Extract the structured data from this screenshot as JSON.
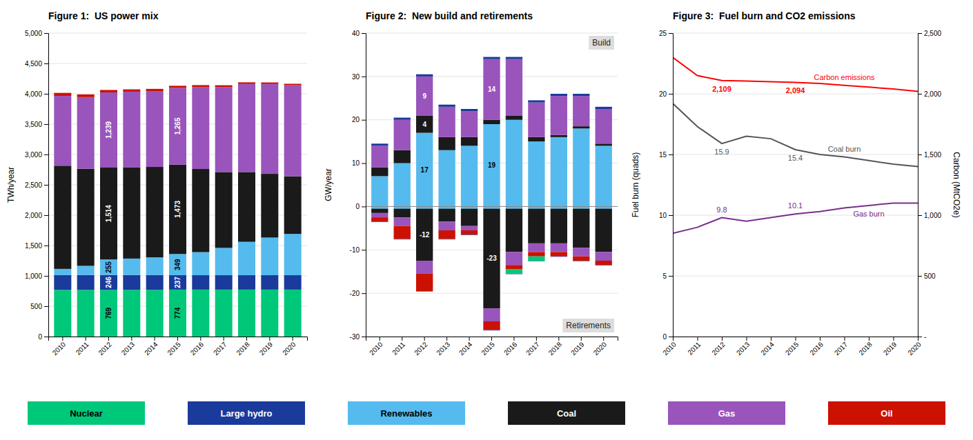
{
  "chart_data": [
    {
      "type": "bar",
      "stacked": true,
      "title": "Figure 1:  US power mix",
      "ylabel": "TWh/year",
      "categories": [
        "2010",
        "2011",
        "2012",
        "2013",
        "2014",
        "2015",
        "2016",
        "2017",
        "2018",
        "2019",
        "2020"
      ],
      "series": [
        {
          "name": "Nuclear",
          "color": "#00C87A",
          "values": [
            769,
            769,
            769,
            769,
            769,
            774,
            774,
            774,
            774,
            774,
            774
          ],
          "value_labels": [
            null,
            null,
            "769",
            null,
            null,
            "774",
            null,
            null,
            null,
            null,
            null
          ]
        },
        {
          "name": "Large hydro",
          "color": "#1A3A9C",
          "values": [
            246,
            246,
            246,
            246,
            246,
            237,
            237,
            237,
            237,
            237,
            237
          ],
          "value_labels": [
            null,
            null,
            "246",
            null,
            null,
            "237",
            null,
            null,
            null,
            null,
            null
          ]
        },
        {
          "name": "Renewables",
          "color": "#55BBEE",
          "values": [
            100,
            150,
            255,
            270,
            290,
            349,
            380,
            450,
            550,
            620,
            680
          ],
          "value_labels": [
            null,
            null,
            "255",
            null,
            null,
            "349",
            null,
            null,
            null,
            null,
            null
          ]
        },
        {
          "name": "Coal",
          "color": "#1A1A1A",
          "values": [
            1700,
            1600,
            1514,
            1500,
            1490,
            1473,
            1370,
            1250,
            1150,
            1050,
            950
          ],
          "value_labels": [
            null,
            null,
            "1,514",
            null,
            null,
            "1,473",
            null,
            null,
            null,
            null,
            null
          ]
        },
        {
          "name": "Gas",
          "color": "#9955BB",
          "values": [
            1150,
            1180,
            1239,
            1250,
            1250,
            1265,
            1350,
            1400,
            1450,
            1480,
            1500
          ],
          "value_labels": [
            null,
            null,
            "1,239",
            null,
            null,
            "1,265",
            null,
            null,
            null,
            null,
            null
          ]
        },
        {
          "name": "Oil",
          "color": "#CC1100",
          "values": [
            50,
            45,
            40,
            38,
            36,
            34,
            32,
            30,
            28,
            26,
            24
          ]
        }
      ],
      "ylim": [
        0,
        5000
      ],
      "yticks": [
        0,
        500,
        {
          "value": 1000,
          "label": "1,000"
        },
        {
          "value": 1500,
          "label": "1,500"
        },
        {
          "value": 2000,
          "label": "2,000"
        },
        {
          "value": 2500,
          "label": "2,500"
        },
        {
          "value": 3000,
          "label": "3,000"
        },
        {
          "value": 3500,
          "label": "3,500"
        },
        {
          "value": 4000,
          "label": "4,000"
        },
        {
          "value": 4500,
          "label": "4,500"
        },
        {
          "value": 5000,
          "label": "5,000"
        }
      ],
      "grid": true,
      "legend": "bottom"
    },
    {
      "type": "bar",
      "stacked": true,
      "title": "Figure 2:  New build and retirements",
      "ylabel": "GW/year",
      "categories": [
        "2010",
        "2011",
        "2012",
        "2013",
        "2014",
        "2015",
        "2016",
        "2017",
        "2018",
        "2019",
        "2020"
      ],
      "series": [
        {
          "name": "Renewables",
          "color": "#55BBEE",
          "values": [
            7,
            10,
            17,
            13,
            14,
            19,
            20,
            15,
            16,
            18,
            14
          ],
          "value_labels": [
            null,
            null,
            "17",
            null,
            null,
            "19",
            null,
            null,
            null,
            null,
            null
          ]
        },
        {
          "name": "Coal",
          "color": "#1A1A1A",
          "values": [
            2,
            3,
            4,
            3,
            2,
            1,
            1,
            1,
            0.5,
            0.5,
            0.5
          ],
          "value_labels": [
            null,
            null,
            "4",
            null,
            null,
            null,
            null,
            null,
            null,
            null,
            null
          ]
        },
        {
          "name": "Gas",
          "color": "#9955BB",
          "values": [
            5,
            7,
            9,
            7,
            6,
            14,
            13,
            8,
            9,
            7,
            8
          ],
          "value_labels": [
            null,
            null,
            "9",
            null,
            null,
            "14",
            null,
            null,
            null,
            null,
            null
          ]
        },
        {
          "name": "Large hydro",
          "color": "#1A3A9C",
          "values": [
            0.5,
            0.5,
            0.5,
            0.5,
            0.5,
            0.5,
            0.5,
            0.5,
            0.5,
            0.5,
            0.5
          ]
        },
        {
          "name": "Nuclear",
          "color": "#00C87A",
          "values": [
            0,
            0,
            0,
            0,
            0,
            0,
            0,
            0,
            0,
            0,
            0
          ]
        },
        {
          "name": "Renewables",
          "color": "#55BBEE",
          "values": [
            -0.5,
            -0.5,
            -0.5,
            -0.5,
            -0.5,
            -0.5,
            -0.5,
            -0.5,
            -0.5,
            -0.5,
            -0.5
          ]
        },
        {
          "name": "Coal",
          "color": "#1A1A1A",
          "values": [
            -1,
            -2,
            -12,
            -3,
            -4,
            -23,
            -10,
            -8,
            -8,
            -9,
            -10
          ],
          "value_labels": [
            null,
            null,
            "-12",
            null,
            null,
            "-23",
            null,
            null,
            null,
            null,
            null
          ]
        },
        {
          "name": "Gas",
          "color": "#9955BB",
          "values": [
            -1,
            -2,
            -3,
            -2,
            -1,
            -3,
            -3,
            -2,
            -2,
            -2,
            -2
          ]
        },
        {
          "name": "Oil",
          "color": "#CC1100",
          "values": [
            -1,
            -3,
            -4,
            -2,
            -1,
            -2,
            -1,
            -1,
            -1,
            -1,
            -1
          ]
        },
        {
          "name": "Nuclear",
          "color": "#00C87A",
          "values": [
            0,
            0,
            0,
            0,
            0,
            0,
            -1,
            -1,
            0,
            0,
            0
          ]
        },
        {
          "name": "Large hydro",
          "color": "#1A3A9C",
          "values": [
            -0.1,
            -0.1,
            -0.1,
            -0.1,
            -0.1,
            -0.1,
            -0.1,
            -0.1,
            -0.1,
            -0.1,
            -0.1
          ]
        }
      ],
      "ylim": [
        -30,
        40
      ],
      "yticks": [
        -30,
        -20,
        -10,
        0,
        10,
        20,
        30,
        40
      ],
      "grid": true,
      "annotations": [
        "Build",
        "Retirements"
      ]
    },
    {
      "type": "line",
      "title": "Figure 3:  Fuel burn and CO2 emissions",
      "ylabel": "Fuel burn (quads)",
      "y2label": "Carbon (MtCO2e)",
      "x": [
        2010,
        2011,
        2012,
        2013,
        2014,
        2015,
        2016,
        2017,
        2018,
        2019,
        2020
      ],
      "xlim": [
        2010,
        2020
      ],
      "xticks": [
        2010,
        2011,
        2012,
        2013,
        2014,
        2015,
        2016,
        2017,
        2018,
        2019,
        2020
      ],
      "series": [
        {
          "name": "Coal burn",
          "color": "#555555",
          "values": [
            19.2,
            17.3,
            15.9,
            16.5,
            16.3,
            15.4,
            15.0,
            14.8,
            14.5,
            14.2,
            14.0
          ],
          "value_labels": [
            null,
            null,
            "15.9",
            null,
            null,
            "15.4",
            null,
            null,
            null,
            null,
            null
          ]
        },
        {
          "name": "Gas burn",
          "color": "#7B2D8B",
          "values": [
            8.5,
            9.0,
            9.8,
            9.5,
            9.8,
            10.1,
            10.3,
            10.6,
            10.8,
            11.0,
            11.0
          ],
          "value_labels": [
            null,
            null,
            "9.8",
            null,
            null,
            "10.1",
            null,
            null,
            null,
            null,
            null
          ]
        },
        {
          "name": "Carbon emissions",
          "color": "red",
          "axis": "y2",
          "values": [
            2300,
            2150,
            2109,
            2105,
            2100,
            2094,
            2085,
            2070,
            2055,
            2040,
            2020
          ],
          "value_labels": [
            null,
            null,
            "2,109",
            null,
            null,
            "2,094",
            null,
            null,
            null,
            null,
            null
          ]
        }
      ],
      "ylim": [
        0,
        25
      ],
      "yticks": [
        0,
        5,
        10,
        15,
        20,
        25
      ],
      "y2lim": [
        0,
        2500
      ],
      "y2ticks": [
        {
          "value": 0,
          "label": "-"
        },
        500,
        {
          "value": 1000,
          "label": "1,000"
        },
        {
          "value": 1500,
          "label": "1,500"
        },
        {
          "value": 2000,
          "label": "2,000"
        },
        {
          "value": 2500,
          "label": "2,500"
        }
      ],
      "grid": true
    }
  ]
}
